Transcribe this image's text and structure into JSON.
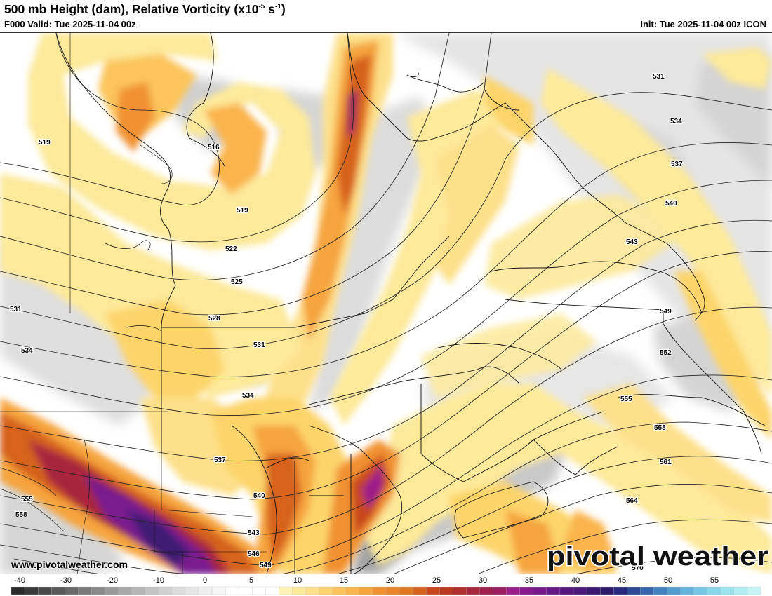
{
  "header": {
    "title_main": "500 mb Height (dam), Relative Vorticity (x10",
    "title_exp": "-5",
    "title_mid": " s",
    "title_exp2": "-1",
    "title_end": ")",
    "valid": "F000 Valid: Tue 2025-11-04 00z",
    "init": "Init: Tue 2025-11-04 00z ICON"
  },
  "watermark": {
    "url": "www.pivotalweather.com",
    "logo_text": "pivotal weather"
  },
  "colors": {
    "light_yellow": "#fde99a",
    "yellow": "#fdd46b",
    "orange": "#f6a43c",
    "dark_orange": "#e07820",
    "red_orange": "#c9471a",
    "purple": "#9b1f8a",
    "dark_purple": "#4b1a7a",
    "gray_light": "#e6e6e6",
    "gray": "#c8c8c8",
    "gray_dark": "#9a9a9a"
  },
  "contours": [
    {
      "label": "516"
    },
    {
      "label": "519"
    },
    {
      "label": "519"
    },
    {
      "label": "522"
    },
    {
      "label": "525"
    },
    {
      "label": "528"
    },
    {
      "label": "531"
    },
    {
      "label": "531"
    },
    {
      "label": "531"
    },
    {
      "label": "534"
    },
    {
      "label": "534"
    },
    {
      "label": "534"
    },
    {
      "label": "537"
    },
    {
      "label": "537"
    },
    {
      "label": "540"
    },
    {
      "label": "540"
    },
    {
      "label": "543"
    },
    {
      "label": "543"
    },
    {
      "label": "546"
    },
    {
      "label": "549"
    },
    {
      "label": "549"
    },
    {
      "label": "552"
    },
    {
      "label": "555"
    },
    {
      "label": "555"
    },
    {
      "label": "558"
    },
    {
      "label": "558"
    },
    {
      "label": "561"
    },
    {
      "label": "564"
    },
    {
      "label": "570"
    }
  ],
  "colorbar": {
    "ticks": [
      "-40",
      "-30",
      "-20",
      "-10",
      "0",
      "5",
      "10",
      "15",
      "20",
      "25",
      "30",
      "35",
      "40",
      "45",
      "50",
      "55"
    ],
    "swatches": [
      "#2b2b2b",
      "#3a3a3a",
      "#4a4a4a",
      "#5a5a5a",
      "#6a6a6a",
      "#7a7a7a",
      "#8a8a8a",
      "#9a9a9a",
      "#a8a8a8",
      "#b6b6b6",
      "#c4c4c4",
      "#d0d0d0",
      "#dcdcdc",
      "#e6e6e6",
      "#efefef",
      "#f7f7f7",
      "#ffffff",
      "#ffffff",
      "#ffffff",
      "#ffffff",
      "#fff3b8",
      "#fde99a",
      "#fde08a",
      "#fdd46b",
      "#fcc45a",
      "#fab44c",
      "#f6a43c",
      "#f09232",
      "#e98428",
      "#e07820",
      "#d6621c",
      "#c9471a",
      "#bd3a22",
      "#b2302e",
      "#a8283e",
      "#a0224e",
      "#9b1f62",
      "#9b1f8a",
      "#8a1c90",
      "#781a8e",
      "#661a88",
      "#561a80",
      "#4b1a7a",
      "#3c1a72",
      "#2e1a6a",
      "#2a2a80",
      "#304a98",
      "#3866ae",
      "#4482c2",
      "#529cd0",
      "#62b4dc",
      "#74c8e4",
      "#88d8ea",
      "#9ce4ee",
      "#b0eef2",
      "#c4f4f6"
    ]
  }
}
